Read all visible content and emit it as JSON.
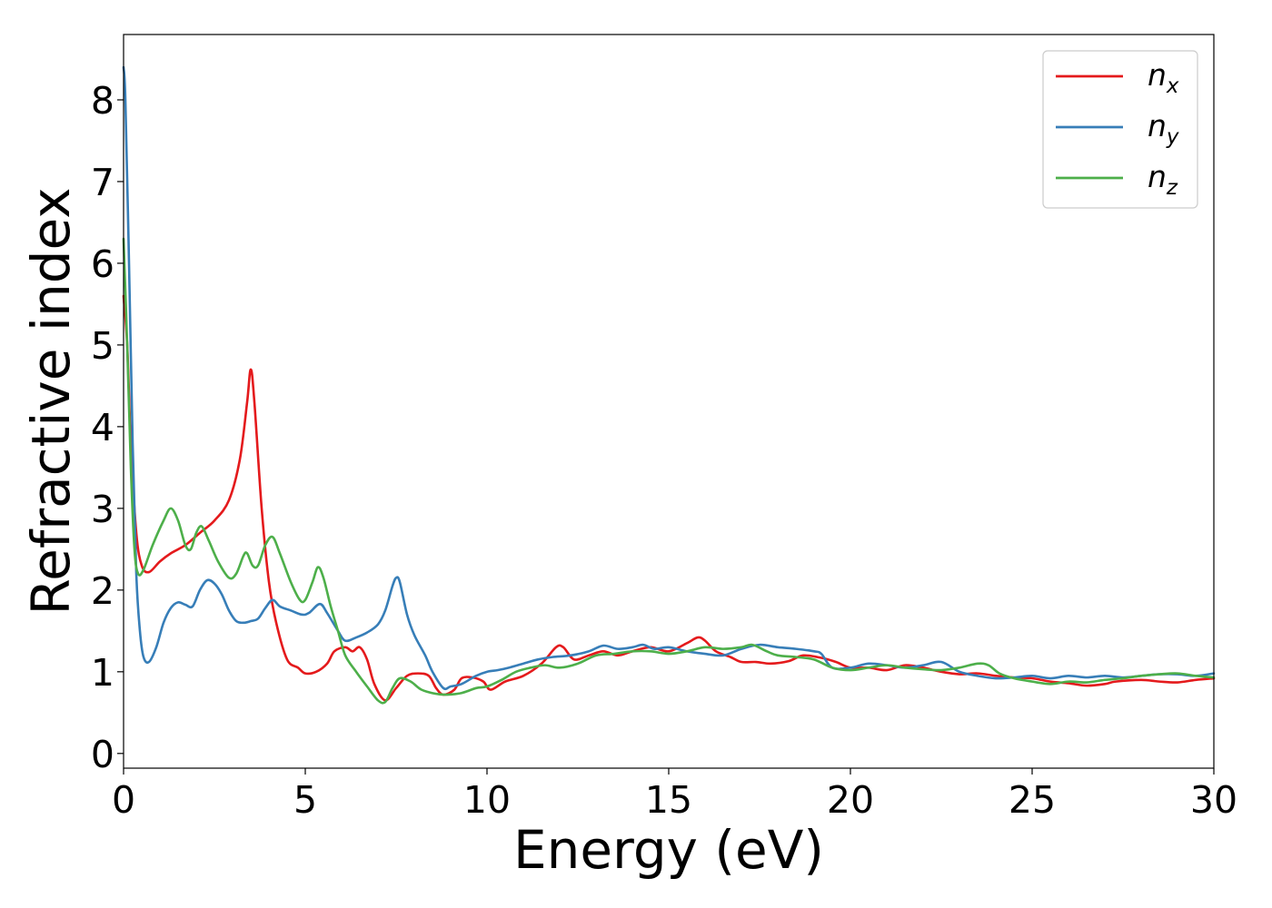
{
  "chart_data": {
    "type": "line",
    "xlabel": "Energy (eV)",
    "ylabel": "Refractive index",
    "xlim": [
      0,
      30
    ],
    "ylim": [
      -0.18,
      8.8
    ],
    "xticks": [
      0,
      5,
      10,
      15,
      20,
      25,
      30
    ],
    "yticks": [
      0,
      1,
      2,
      3,
      4,
      5,
      6,
      7,
      8
    ],
    "grid": false,
    "legend_position": "top-right",
    "series": [
      {
        "name": "n_x",
        "label_base": "n",
        "label_sub": "x",
        "color": "#e41a1c",
        "points": [
          [
            0,
            5.6
          ],
          [
            0.1,
            5.0
          ],
          [
            0.2,
            3.8
          ],
          [
            0.35,
            2.7
          ],
          [
            0.5,
            2.3
          ],
          [
            0.7,
            2.22
          ],
          [
            1.0,
            2.35
          ],
          [
            1.3,
            2.45
          ],
          [
            1.7,
            2.55
          ],
          [
            2.1,
            2.7
          ],
          [
            2.5,
            2.85
          ],
          [
            2.9,
            3.1
          ],
          [
            3.2,
            3.6
          ],
          [
            3.4,
            4.3
          ],
          [
            3.5,
            4.7
          ],
          [
            3.6,
            4.3
          ],
          [
            3.8,
            3.0
          ],
          [
            4.0,
            2.1
          ],
          [
            4.2,
            1.6
          ],
          [
            4.5,
            1.15
          ],
          [
            4.8,
            1.05
          ],
          [
            5.0,
            0.98
          ],
          [
            5.3,
            1.0
          ],
          [
            5.6,
            1.1
          ],
          [
            5.8,
            1.25
          ],
          [
            6.1,
            1.3
          ],
          [
            6.3,
            1.25
          ],
          [
            6.5,
            1.3
          ],
          [
            6.7,
            1.15
          ],
          [
            6.9,
            0.85
          ],
          [
            7.2,
            0.65
          ],
          [
            7.5,
            0.8
          ],
          [
            7.8,
            0.95
          ],
          [
            8.1,
            0.98
          ],
          [
            8.4,
            0.95
          ],
          [
            8.6,
            0.8
          ],
          [
            8.8,
            0.72
          ],
          [
            9.1,
            0.78
          ],
          [
            9.3,
            0.92
          ],
          [
            9.6,
            0.93
          ],
          [
            9.9,
            0.88
          ],
          [
            10.1,
            0.78
          ],
          [
            10.5,
            0.88
          ],
          [
            11.0,
            0.95
          ],
          [
            11.5,
            1.1
          ],
          [
            11.9,
            1.3
          ],
          [
            12.1,
            1.3
          ],
          [
            12.4,
            1.15
          ],
          [
            12.8,
            1.2
          ],
          [
            13.2,
            1.25
          ],
          [
            13.6,
            1.2
          ],
          [
            14.0,
            1.25
          ],
          [
            14.5,
            1.3
          ],
          [
            15.0,
            1.25
          ],
          [
            15.5,
            1.35
          ],
          [
            15.8,
            1.42
          ],
          [
            16.0,
            1.38
          ],
          [
            16.3,
            1.25
          ],
          [
            16.7,
            1.18
          ],
          [
            17.0,
            1.12
          ],
          [
            17.4,
            1.12
          ],
          [
            17.8,
            1.1
          ],
          [
            18.3,
            1.13
          ],
          [
            18.7,
            1.2
          ],
          [
            19.2,
            1.17
          ],
          [
            19.6,
            1.12
          ],
          [
            20.0,
            1.05
          ],
          [
            20.5,
            1.05
          ],
          [
            21.0,
            1.02
          ],
          [
            21.5,
            1.08
          ],
          [
            22.0,
            1.05
          ],
          [
            22.5,
            1.0
          ],
          [
            23.0,
            0.97
          ],
          [
            23.5,
            0.98
          ],
          [
            24.0,
            0.95
          ],
          [
            24.5,
            0.93
          ],
          [
            25.0,
            0.92
          ],
          [
            25.5,
            0.88
          ],
          [
            26.0,
            0.86
          ],
          [
            26.5,
            0.83
          ],
          [
            27.0,
            0.85
          ],
          [
            27.3,
            0.88
          ],
          [
            28.0,
            0.9
          ],
          [
            28.5,
            0.88
          ],
          [
            29.0,
            0.87
          ],
          [
            29.5,
            0.9
          ],
          [
            30.0,
            0.92
          ]
        ]
      },
      {
        "name": "n_y",
        "label_base": "n",
        "label_sub": "y",
        "color": "#377eb8",
        "points": [
          [
            0,
            8.4
          ],
          [
            0.05,
            8.0
          ],
          [
            0.15,
            6.0
          ],
          [
            0.25,
            3.8
          ],
          [
            0.35,
            2.2
          ],
          [
            0.45,
            1.5
          ],
          [
            0.55,
            1.18
          ],
          [
            0.7,
            1.12
          ],
          [
            0.9,
            1.3
          ],
          [
            1.1,
            1.6
          ],
          [
            1.3,
            1.78
          ],
          [
            1.5,
            1.85
          ],
          [
            1.7,
            1.82
          ],
          [
            1.9,
            1.8
          ],
          [
            2.1,
            2.0
          ],
          [
            2.3,
            2.12
          ],
          [
            2.5,
            2.08
          ],
          [
            2.7,
            1.95
          ],
          [
            2.9,
            1.75
          ],
          [
            3.1,
            1.62
          ],
          [
            3.3,
            1.6
          ],
          [
            3.5,
            1.62
          ],
          [
            3.7,
            1.65
          ],
          [
            3.9,
            1.78
          ],
          [
            4.1,
            1.88
          ],
          [
            4.3,
            1.8
          ],
          [
            4.6,
            1.75
          ],
          [
            4.9,
            1.7
          ],
          [
            5.1,
            1.72
          ],
          [
            5.4,
            1.83
          ],
          [
            5.6,
            1.72
          ],
          [
            5.9,
            1.5
          ],
          [
            6.1,
            1.38
          ],
          [
            6.4,
            1.42
          ],
          [
            6.7,
            1.48
          ],
          [
            7.0,
            1.58
          ],
          [
            7.2,
            1.75
          ],
          [
            7.4,
            2.05
          ],
          [
            7.5,
            2.15
          ],
          [
            7.6,
            2.1
          ],
          [
            7.8,
            1.7
          ],
          [
            8.0,
            1.45
          ],
          [
            8.3,
            1.2
          ],
          [
            8.5,
            1.0
          ],
          [
            8.8,
            0.8
          ],
          [
            9.0,
            0.82
          ],
          [
            9.3,
            0.85
          ],
          [
            9.7,
            0.95
          ],
          [
            10.0,
            1.0
          ],
          [
            10.3,
            1.02
          ],
          [
            10.6,
            1.05
          ],
          [
            11.0,
            1.1
          ],
          [
            11.4,
            1.15
          ],
          [
            11.8,
            1.18
          ],
          [
            12.3,
            1.2
          ],
          [
            12.8,
            1.25
          ],
          [
            13.2,
            1.32
          ],
          [
            13.6,
            1.28
          ],
          [
            14.0,
            1.3
          ],
          [
            14.3,
            1.33
          ],
          [
            14.6,
            1.28
          ],
          [
            15.0,
            1.3
          ],
          [
            15.5,
            1.25
          ],
          [
            16.0,
            1.22
          ],
          [
            16.5,
            1.2
          ],
          [
            17.0,
            1.28
          ],
          [
            17.5,
            1.33
          ],
          [
            18.0,
            1.3
          ],
          [
            18.5,
            1.28
          ],
          [
            19.0,
            1.25
          ],
          [
            19.2,
            1.22
          ],
          [
            19.5,
            1.05
          ],
          [
            20.0,
            1.05
          ],
          [
            20.5,
            1.1
          ],
          [
            21.0,
            1.08
          ],
          [
            21.5,
            1.05
          ],
          [
            22.0,
            1.08
          ],
          [
            22.5,
            1.12
          ],
          [
            23.0,
            1.0
          ],
          [
            23.5,
            0.95
          ],
          [
            24.0,
            0.92
          ],
          [
            24.5,
            0.93
          ],
          [
            25.0,
            0.95
          ],
          [
            25.5,
            0.92
          ],
          [
            26.0,
            0.95
          ],
          [
            26.5,
            0.93
          ],
          [
            27.0,
            0.95
          ],
          [
            27.5,
            0.93
          ],
          [
            28.0,
            0.95
          ],
          [
            28.5,
            0.97
          ],
          [
            29.0,
            0.97
          ],
          [
            29.5,
            0.95
          ],
          [
            30.0,
            0.98
          ]
        ]
      },
      {
        "name": "n_z",
        "label_base": "n",
        "label_sub": "z",
        "color": "#4daf4a",
        "points": [
          [
            0,
            6.3
          ],
          [
            0.1,
            5.0
          ],
          [
            0.2,
            3.5
          ],
          [
            0.3,
            2.5
          ],
          [
            0.4,
            2.2
          ],
          [
            0.55,
            2.25
          ],
          [
            0.8,
            2.55
          ],
          [
            1.1,
            2.85
          ],
          [
            1.3,
            3.0
          ],
          [
            1.5,
            2.85
          ],
          [
            1.7,
            2.55
          ],
          [
            1.85,
            2.5
          ],
          [
            2.0,
            2.7
          ],
          [
            2.15,
            2.78
          ],
          [
            2.35,
            2.6
          ],
          [
            2.6,
            2.35
          ],
          [
            2.9,
            2.15
          ],
          [
            3.1,
            2.2
          ],
          [
            3.3,
            2.42
          ],
          [
            3.4,
            2.45
          ],
          [
            3.55,
            2.3
          ],
          [
            3.7,
            2.3
          ],
          [
            3.9,
            2.55
          ],
          [
            4.1,
            2.65
          ],
          [
            4.3,
            2.45
          ],
          [
            4.6,
            2.1
          ],
          [
            4.85,
            1.88
          ],
          [
            5.0,
            1.88
          ],
          [
            5.2,
            2.1
          ],
          [
            5.35,
            2.28
          ],
          [
            5.5,
            2.15
          ],
          [
            5.7,
            1.8
          ],
          [
            5.9,
            1.5
          ],
          [
            6.1,
            1.2
          ],
          [
            6.4,
            1.0
          ],
          [
            6.7,
            0.82
          ],
          [
            7.0,
            0.65
          ],
          [
            7.2,
            0.63
          ],
          [
            7.4,
            0.8
          ],
          [
            7.6,
            0.92
          ],
          [
            7.9,
            0.88
          ],
          [
            8.2,
            0.78
          ],
          [
            8.6,
            0.73
          ],
          [
            8.9,
            0.72
          ],
          [
            9.3,
            0.74
          ],
          [
            9.7,
            0.8
          ],
          [
            10.0,
            0.82
          ],
          [
            10.4,
            0.9
          ],
          [
            10.8,
            1.0
          ],
          [
            11.2,
            1.05
          ],
          [
            11.6,
            1.08
          ],
          [
            12.0,
            1.05
          ],
          [
            12.5,
            1.1
          ],
          [
            13.0,
            1.2
          ],
          [
            13.5,
            1.22
          ],
          [
            14.0,
            1.25
          ],
          [
            14.5,
            1.25
          ],
          [
            15.0,
            1.22
          ],
          [
            15.5,
            1.25
          ],
          [
            16.0,
            1.3
          ],
          [
            16.5,
            1.28
          ],
          [
            17.0,
            1.3
          ],
          [
            17.3,
            1.33
          ],
          [
            17.7,
            1.25
          ],
          [
            18.0,
            1.2
          ],
          [
            18.5,
            1.18
          ],
          [
            19.0,
            1.15
          ],
          [
            19.5,
            1.05
          ],
          [
            20.0,
            1.02
          ],
          [
            20.5,
            1.05
          ],
          [
            21.0,
            1.08
          ],
          [
            21.5,
            1.05
          ],
          [
            22.0,
            1.03
          ],
          [
            22.5,
            1.02
          ],
          [
            23.0,
            1.05
          ],
          [
            23.5,
            1.1
          ],
          [
            23.8,
            1.08
          ],
          [
            24.1,
            0.98
          ],
          [
            24.5,
            0.92
          ],
          [
            25.0,
            0.88
          ],
          [
            25.5,
            0.85
          ],
          [
            26.0,
            0.88
          ],
          [
            26.5,
            0.87
          ],
          [
            27.0,
            0.9
          ],
          [
            27.5,
            0.92
          ],
          [
            28.0,
            0.95
          ],
          [
            28.5,
            0.97
          ],
          [
            29.0,
            0.98
          ],
          [
            29.5,
            0.95
          ],
          [
            30.0,
            0.93
          ]
        ]
      }
    ]
  }
}
